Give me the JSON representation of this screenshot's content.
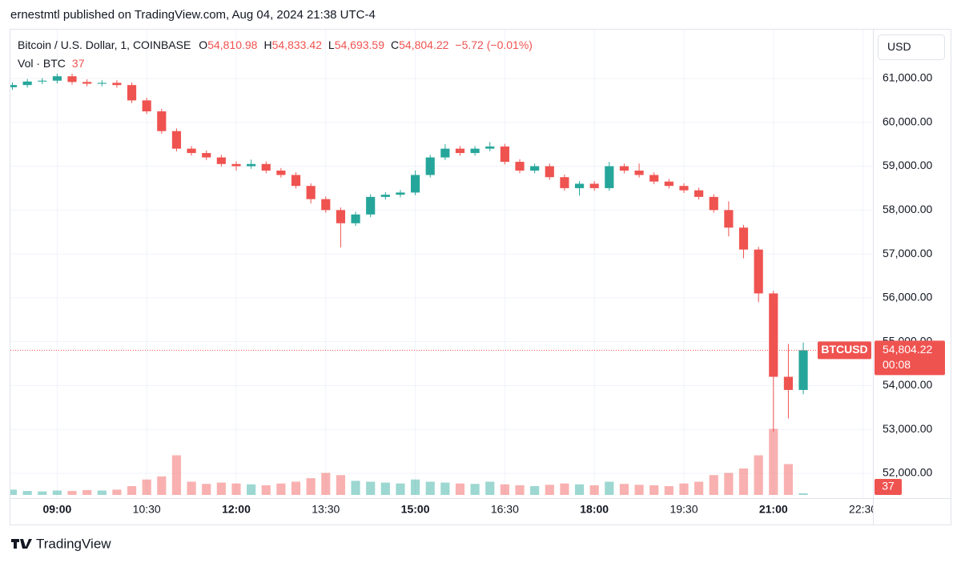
{
  "header": {
    "publisher": "ernestmtl published on TradingView.com, Aug 04, 2024 21:38 UTC-4"
  },
  "chart_data": {
    "type": "candlestick",
    "title": "Bitcoin / U.S. Dollar, 1, COINBASE",
    "legend": [
      {
        "label": "O",
        "value": "54,810.98"
      },
      {
        "label": "H",
        "value": "54,833.42"
      },
      {
        "label": "L",
        "value": "54,693.59"
      },
      {
        "label": "C",
        "value": "54,804.22"
      }
    ],
    "change": "−5.72 (−0.01%)",
    "volume_title": "Vol · BTC",
    "currency": "USD",
    "symbol": "BTCUSD",
    "countdown": "00:08",
    "last_price": {
      "value": 54804.22,
      "label": "54,804.22"
    },
    "x": [
      "08:15",
      "08:30",
      "08:45",
      "09:00",
      "09:15",
      "09:30",
      "09:45",
      "10:00",
      "10:15",
      "10:30",
      "10:45",
      "11:00",
      "11:15",
      "11:30",
      "11:45",
      "12:00",
      "12:15",
      "12:30",
      "12:45",
      "13:00",
      "13:15",
      "13:30",
      "13:45",
      "14:00",
      "14:15",
      "14:30",
      "14:45",
      "15:00",
      "15:15",
      "15:30",
      "15:45",
      "16:00",
      "16:15",
      "16:30",
      "16:45",
      "17:00",
      "17:15",
      "17:30",
      "17:45",
      "18:00",
      "18:15",
      "18:30",
      "18:45",
      "19:00",
      "19:15",
      "19:30",
      "19:45",
      "20:00",
      "20:15",
      "20:30",
      "20:45",
      "21:00",
      "21:15",
      "21:30"
    ],
    "open": [
      60800,
      60850,
      60930,
      60950,
      61050,
      60920,
      60880,
      60900,
      60850,
      60500,
      60250,
      59800,
      59400,
      59300,
      59200,
      59050,
      59000,
      59050,
      58900,
      58800,
      58550,
      58250,
      58000,
      57700,
      57900,
      58300,
      58350,
      58400,
      58800,
      59200,
      59400,
      59300,
      59400,
      59450,
      59100,
      58900,
      59000,
      58750,
      58500,
      58600,
      58500,
      59000,
      58900,
      58800,
      58650,
      58550,
      58450,
      58300,
      58000,
      57600,
      57100,
      56100,
      54200,
      53900
    ],
    "high": [
      60910,
      60990,
      61010,
      61110,
      61110,
      60980,
      60960,
      60960,
      60910,
      60560,
      60310,
      59860,
      59460,
      59360,
      59260,
      59110,
      59150,
      59110,
      58960,
      58860,
      58610,
      58310,
      58060,
      57960,
      58360,
      58410,
      58460,
      58900,
      59260,
      59500,
      59460,
      59460,
      59550,
      59510,
      59160,
      59060,
      59060,
      58810,
      58660,
      58660,
      59100,
      59060,
      59060,
      58860,
      58710,
      58610,
      58510,
      58360,
      58200,
      57660,
      57160,
      56160,
      54950,
      54980
    ],
    "low": [
      60740,
      60790,
      60870,
      60890,
      60860,
      60820,
      60820,
      60790,
      60440,
      60190,
      59740,
      59340,
      59240,
      59140,
      58990,
      58900,
      58940,
      58840,
      58740,
      58490,
      58150,
      57940,
      57150,
      57640,
      57840,
      58240,
      58290,
      58340,
      58740,
      59140,
      59240,
      59240,
      59340,
      59040,
      58840,
      58840,
      58690,
      58440,
      58330,
      58440,
      58440,
      58840,
      58740,
      58590,
      58490,
      58390,
      58240,
      57940,
      57400,
      56900,
      55900,
      52950,
      53250,
      53800
    ],
    "close": [
      60850,
      60930,
      60950,
      61050,
      60920,
      60880,
      60900,
      60850,
      60500,
      60250,
      59800,
      59400,
      59300,
      59200,
      59050,
      59000,
      59050,
      58900,
      58800,
      58550,
      58250,
      58000,
      57700,
      57900,
      58300,
      58350,
      58400,
      58800,
      59200,
      59400,
      59300,
      59400,
      59450,
      59100,
      58900,
      59000,
      58750,
      58500,
      58600,
      58500,
      59000,
      58900,
      58800,
      58650,
      58550,
      58450,
      58300,
      58000,
      57600,
      57100,
      56100,
      54200,
      53900,
      54804.22
    ],
    "volume": [
      120,
      90,
      80,
      100,
      90,
      110,
      100,
      120,
      200,
      350,
      420,
      900,
      300,
      250,
      280,
      260,
      240,
      220,
      260,
      300,
      380,
      500,
      450,
      320,
      300,
      280,
      260,
      350,
      300,
      280,
      260,
      250,
      300,
      240,
      220,
      200,
      230,
      260,
      240,
      220,
      300,
      250,
      230,
      220,
      200,
      260,
      300,
      450,
      500,
      600,
      900,
      1500,
      700,
      37
    ],
    "up_color": "#26a69a",
    "down_color": "#ef5350",
    "xlim": [
      "08:13",
      "22:40"
    ],
    "xticks": [
      "09:00",
      "10:30",
      "12:00",
      "13:30",
      "15:00",
      "16:30",
      "18:00",
      "19:30",
      "21:00",
      "22:30"
    ],
    "ylim": [
      51434,
      62113
    ],
    "yticks": [
      {
        "value": 52000,
        "label": "52,000.00"
      },
      {
        "value": 53000,
        "label": "53,000.00"
      },
      {
        "value": 54000,
        "label": "54,000.00"
      },
      {
        "value": 55000,
        "label": "55,000.00"
      },
      {
        "value": 56000,
        "label": "56,000.00"
      },
      {
        "value": 57000,
        "label": "57,000.00"
      },
      {
        "value": 58000,
        "label": "58,000.00"
      },
      {
        "value": 59000,
        "label": "59,000.00"
      },
      {
        "value": 60000,
        "label": "60,000.00"
      },
      {
        "value": 61000,
        "label": "61,000.00"
      }
    ],
    "y2lim": [
      0,
      2000
    ],
    "grid": true
  },
  "footer": {
    "brand": "TradingView"
  }
}
